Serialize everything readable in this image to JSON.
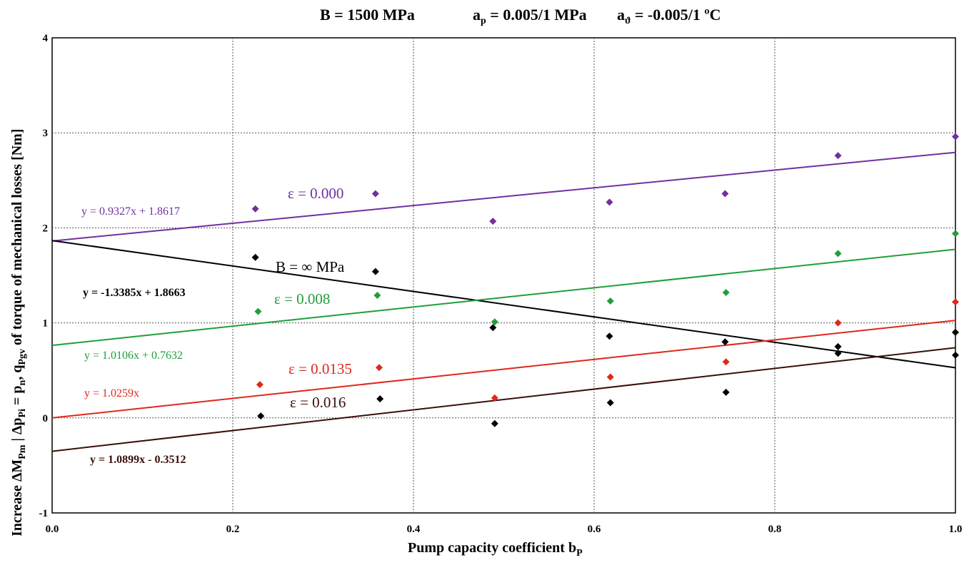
{
  "chart_data": {
    "type": "scatter",
    "title": {
      "b_text": "B = 1500  MPa",
      "ap_main": "a",
      "ap_sub": "p",
      "ap_rest": " = 0.005/1  MPa",
      "at_main": "a",
      "at_sub": "ϑ",
      "at_rest": " = -0.005/1  ºC"
    },
    "xlabel": {
      "main": "Pump capacity  coefficient  b",
      "sub": "P"
    },
    "ylabel": {
      "part1": "Increase  ΔM",
      "part1_sub": "Pm",
      "part2": " | Δp",
      "part2_sub": "Pi",
      "part3": " = p",
      "part3_sub": "n",
      "part4": ", q",
      "part4_sub": "Pgv",
      "part5": "   of torque of mechanical  losses  [Nm]"
    },
    "xlim": [
      0.0,
      1.0
    ],
    "ylim": [
      -1,
      4
    ],
    "x_ticks": [
      "0.0",
      "0.2",
      "0.4",
      "0.6",
      "0.8",
      "1.0"
    ],
    "x_tick_values": [
      0.0,
      0.2,
      0.4,
      0.6,
      0.8,
      1.0
    ],
    "y_ticks": [
      "-1",
      "0",
      "1",
      "2",
      "3",
      "4"
    ],
    "y_tick_values": [
      -1,
      0,
      1,
      2,
      3,
      4
    ],
    "grid": true,
    "series": [
      {
        "name": "ε = 0.000",
        "color": "#7030a0",
        "points": [
          [
            0.225,
            2.2
          ],
          [
            0.358,
            2.36
          ],
          [
            0.488,
            2.07
          ],
          [
            0.617,
            2.27
          ],
          [
            0.745,
            2.36
          ],
          [
            0.87,
            2.76
          ],
          [
            1.0,
            2.96
          ]
        ],
        "trend": {
          "slope": 0.9327,
          "intercept": 1.8617,
          "equation": "y = 0.9327x + 1.8617"
        }
      },
      {
        "name": "B = ∞ MPa",
        "color": "#000000",
        "points": [
          [
            0.225,
            1.69
          ],
          [
            0.358,
            1.54
          ],
          [
            0.488,
            0.95
          ],
          [
            0.617,
            0.86
          ],
          [
            0.745,
            0.8
          ],
          [
            0.87,
            0.75
          ],
          [
            1.0,
            0.9
          ]
        ],
        "trend": {
          "slope": -1.3385,
          "intercept": 1.8663,
          "equation": "y = -1.3385x + 1.8663"
        }
      },
      {
        "name": "ε = 0.008",
        "color": "#1f9e3a",
        "points": [
          [
            0.228,
            1.12
          ],
          [
            0.36,
            1.29
          ],
          [
            0.49,
            1.01
          ],
          [
            0.618,
            1.23
          ],
          [
            0.746,
            1.32
          ],
          [
            0.87,
            1.73
          ],
          [
            1.0,
            1.94
          ]
        ],
        "trend": {
          "slope": 1.0106,
          "intercept": 0.7632,
          "equation": "y = 1.0106x + 0.7632"
        }
      },
      {
        "name": "ε = 0.0135",
        "color": "#e0271b",
        "points": [
          [
            0.23,
            0.35
          ],
          [
            0.362,
            0.53
          ],
          [
            0.49,
            0.21
          ],
          [
            0.618,
            0.43
          ],
          [
            0.746,
            0.59
          ],
          [
            0.87,
            1.0
          ],
          [
            1.0,
            1.22
          ]
        ],
        "trend": {
          "slope": 1.0259,
          "intercept": 0.0,
          "equation": "y = 1.0259x"
        }
      },
      {
        "name": "ε = 0.016",
        "color": "#000000",
        "line_color": "#3a0f0a",
        "points": [
          [
            0.231,
            0.02
          ],
          [
            0.363,
            0.2
          ],
          [
            0.49,
            -0.06
          ],
          [
            0.618,
            0.16
          ],
          [
            0.746,
            0.27
          ],
          [
            0.87,
            0.68
          ],
          [
            1.0,
            0.66
          ]
        ],
        "trend": {
          "slope": 1.0899,
          "intercept": -0.3512,
          "equation": "y = 1.0899x - 0.3512"
        }
      }
    ]
  }
}
